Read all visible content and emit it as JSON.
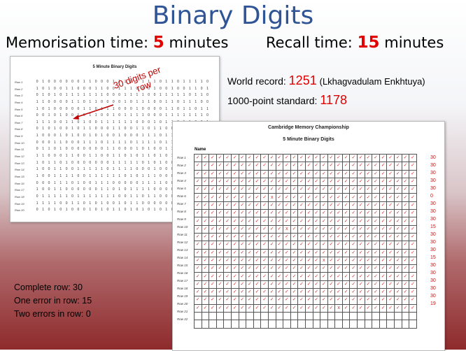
{
  "title": "Binary Digits",
  "memorisation": {
    "label": "Memorisation time:",
    "value": "5",
    "unit": "minutes"
  },
  "recall": {
    "label": "Recall time:",
    "value": "15",
    "unit": "minutes"
  },
  "sample_sheet": {
    "title": "5 Minute Binary Digits",
    "rows": [
      {
        "label": "Row 1",
        "digits": "010000001100011101111011011110"
      },
      {
        "label": "Row 2",
        "digits": "101001100011001110001001001101"
      },
      {
        "label": "Row 3",
        "digits": "010101111111000111100111110110"
      },
      {
        "label": "Row 4",
        "digits": "110000110110000101110011011100"
      },
      {
        "label": "Row 5",
        "digits": "101000001101110001000011011011"
      },
      {
        "label": "Row 6",
        "digits": "001010010110010111100011111110"
      },
      {
        "label": "Row 7",
        "digits": "111001101001111110001011011001"
      },
      {
        "label": "Row 8",
        "digits": "010100101100011001101100110000"
      },
      {
        "label": "Row 9",
        "digits": "100010100101001000111011011001"
      },
      {
        "label": "Row 10",
        "digits": "000110001110111101111011111010"
      },
      {
        "label": "Row 11",
        "digits": "011010000000110001010011110101"
      },
      {
        "label": "Row 12",
        "digits": "110001100110011010110101011011"
      },
      {
        "label": "Row 13",
        "digits": "101101000000011111010100111111"
      },
      {
        "label": "Row 14",
        "digits": "100110011111011110001000000110"
      },
      {
        "label": "Row 15",
        "digits": "100111100111111010111000001111"
      },
      {
        "label": "Row 16",
        "digits": "000111010011100000111100100111"
      },
      {
        "label": "Row 17",
        "digits": "100110000001101011110000000001"
      },
      {
        "label": "Row 18",
        "digits": "011111011111110011011000011111"
      },
      {
        "label": "Row 19",
        "digits": "111100110101001011000000000000"
      },
      {
        "label": "Row 20",
        "digits": "010101000101011010101010101010"
      }
    ]
  },
  "annotation": {
    "line1": "30 digits per",
    "line2": "row"
  },
  "world_record": {
    "label": "World record:",
    "value": "1251",
    "holder": "(Lkhagvadulam Enkhtuya)"
  },
  "standard": {
    "label": "1000-point standard:",
    "value": "1178"
  },
  "score_sheet": {
    "title1": "Cambridge Memory Championship",
    "title2": "5 Minute Binary Digits",
    "name_label": "Name",
    "mark": "✓",
    "error_mark": "x",
    "row_labels": [
      "Row 1",
      "Row 2",
      "Row 3",
      "Row 4",
      "Row 5",
      "Row 6",
      "Row 7",
      "Row 8",
      "Row 9",
      "Row 10",
      "Row 11",
      "Row 12",
      "Row 13",
      "Row 14",
      "Row 15",
      "Row 16",
      "Row 17",
      "Row 18",
      "Row 19",
      "Row 20",
      "Row 21",
      "Row 22"
    ],
    "row_scores": [
      "30",
      "30",
      "30",
      "30",
      "30",
      "0",
      "30",
      "30",
      "30",
      "15",
      "30",
      "30",
      "30",
      "15",
      "30",
      "30",
      "30",
      "30",
      "30",
      "19",
      "",
      ""
    ],
    "errors": [
      [
        5,
        10
      ],
      [
        9,
        12
      ],
      [
        13,
        17
      ],
      [
        19,
        19
      ]
    ]
  },
  "rules": [
    "Complete row: 30",
    "One error in row: 15",
    "Two errors in row: 0"
  ]
}
